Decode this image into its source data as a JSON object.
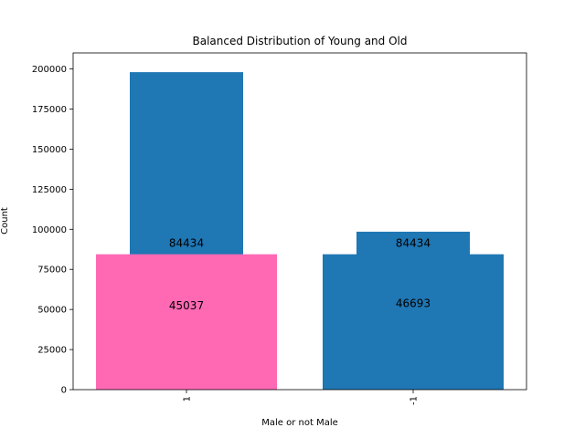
{
  "chart_data": {
    "type": "bar",
    "title": "Balanced Distribution of Young and Old",
    "xlabel": "Male or not Male",
    "ylabel": "Count",
    "categories": [
      "1",
      "-1"
    ],
    "ylim": [
      0,
      210000
    ],
    "yticks": [
      0,
      25000,
      50000,
      75000,
      100000,
      125000,
      150000,
      175000,
      200000
    ],
    "grid": false,
    "legend": "none",
    "series": [
      {
        "values": [
          198000,
          98500
        ],
        "color": "#1f77b4",
        "width": "narrow"
      },
      {
        "values": [
          84434,
          84434
        ],
        "colors": [
          "#ff69b4",
          "#1f77b4"
        ],
        "width": "wide"
      }
    ],
    "annotations": [
      {
        "category": "1",
        "text": "84434",
        "y": 89000
      },
      {
        "category": "1",
        "text": "45037",
        "y": 50000
      },
      {
        "category": "-1",
        "text": "84434",
        "y": 89000
      },
      {
        "category": "-1",
        "text": "46693",
        "y": 51500
      }
    ]
  }
}
